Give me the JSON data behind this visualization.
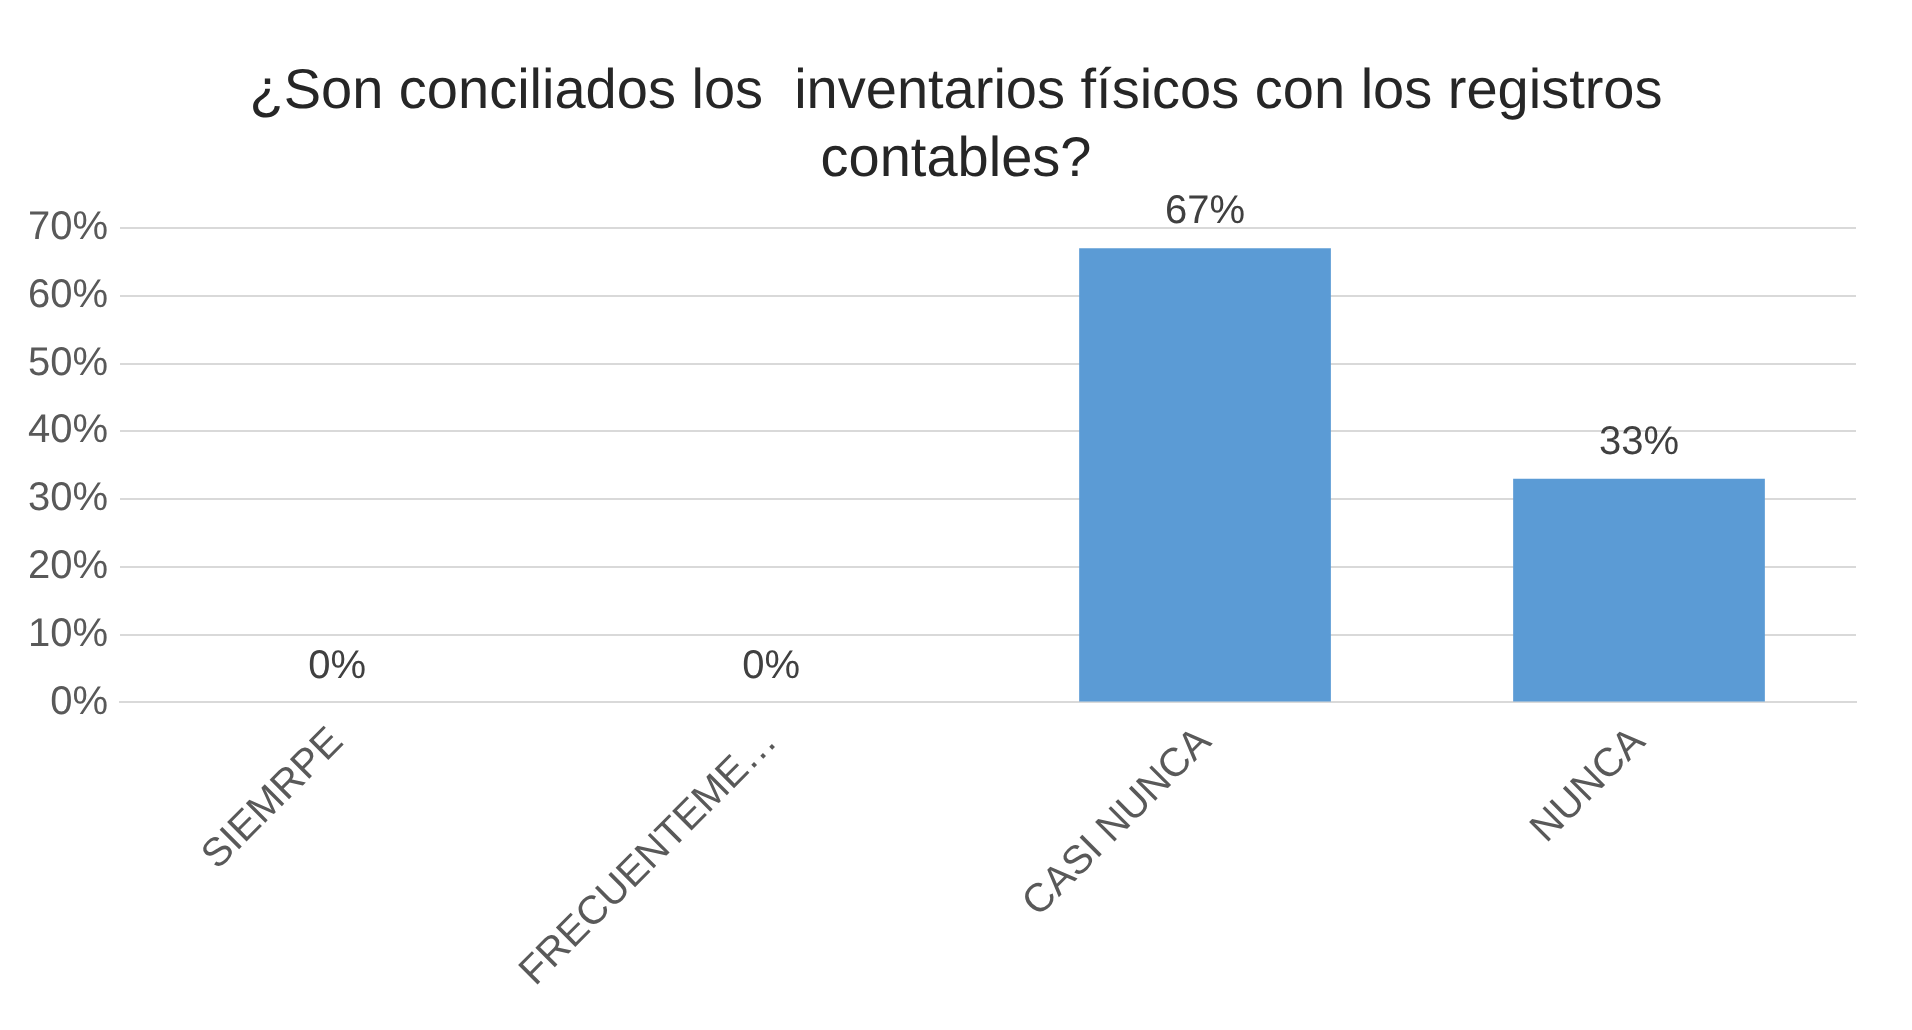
{
  "chart_data": {
    "type": "bar",
    "title": "¿Son conciliados los  inventarios físicos con los registros contables?",
    "categories": [
      "SIEMRPE",
      "FRECUENTEME…",
      "CASI NUNCA",
      "NUNCA"
    ],
    "values": [
      0,
      0,
      67,
      33
    ],
    "color": "#5b9bd5",
    "value_labels": [
      "0%",
      "0%",
      "67%",
      "33%"
    ],
    "ylim": [
      0,
      70
    ],
    "yticks": [
      {
        "value": 0,
        "label": "0%"
      },
      {
        "value": 10,
        "label": "10%"
      },
      {
        "value": 20,
        "label": "20%"
      },
      {
        "value": 30,
        "label": "30%"
      },
      {
        "value": 40,
        "label": "40%"
      },
      {
        "value": 50,
        "label": "50%"
      },
      {
        "value": 60,
        "label": "60%"
      },
      {
        "value": 70,
        "label": "70%"
      }
    ],
    "grid": "y",
    "legend": false
  }
}
